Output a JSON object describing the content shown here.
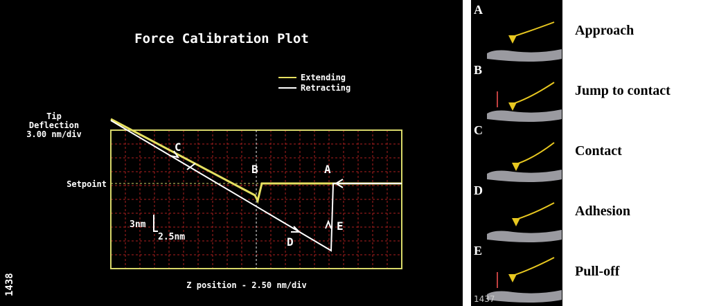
{
  "plot": {
    "title": "Force Calibration Plot",
    "legend": [
      "Extending",
      "Retracting"
    ],
    "y_label": [
      "Tip",
      "Deflection",
      "3.00 nm/div"
    ],
    "setpoint": "Setpoint",
    "points": [
      "C",
      "B",
      "A",
      "D",
      "E"
    ],
    "scale": [
      "3nm",
      "2.5nm"
    ],
    "x_label": "Z position - 2.50 nm/div",
    "figure_id": "1438"
  },
  "stages": [
    {
      "letter": "A",
      "name": "Approach"
    },
    {
      "letter": "B",
      "name": "Jump to contact"
    },
    {
      "letter": "C",
      "name": "Contact"
    },
    {
      "letter": "D",
      "name": "Adhesion"
    },
    {
      "letter": "E",
      "name": "Pull-off"
    }
  ],
  "figure_id": "1437"
}
